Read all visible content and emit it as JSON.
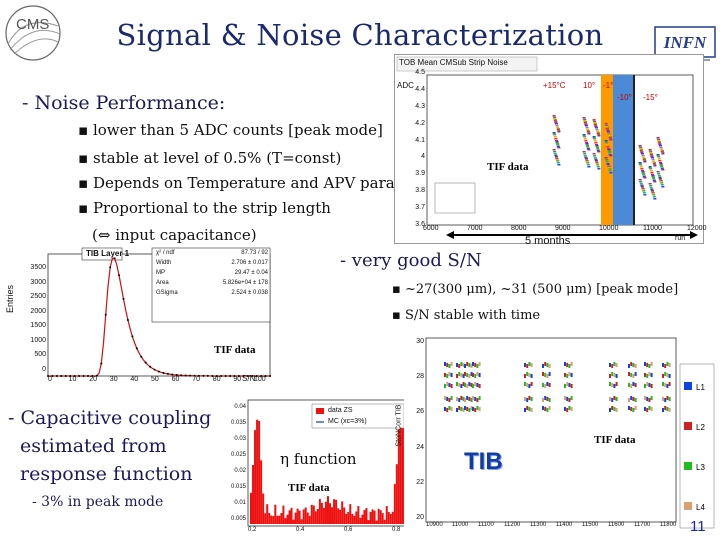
{
  "slide": {
    "title": "Signal & Noise Characterization",
    "page_number": "11",
    "logos": {
      "left": "CMS",
      "right": "INFN"
    }
  },
  "noise": {
    "heading": "- Noise Performance:",
    "bullets": [
      "lower than 5 ADC counts [peak mode]",
      "stable at level of 0.5% (T=const)",
      "Depends on Temperature and APV params",
      "Proportional to the strip length"
    ],
    "sub": "(⇔ input capacitance)"
  },
  "sn": {
    "heading": "- very good S/N",
    "bullets": [
      "~27(300 μm), ~31 (500 μm) [peak mode]",
      "S/N stable with time"
    ]
  },
  "capacitive": {
    "heading_lines": [
      "- Capacitive coupling",
      "estimated from",
      "response function"
    ],
    "sub": "- 3% in peak mode"
  },
  "plot_noise": {
    "title": "TOB Mean CMSub Strip Noise",
    "ylabel": "ADC",
    "temp_labels": [
      "+15°C",
      "10°",
      "-1°",
      "-10°",
      "-15°"
    ],
    "yticks": [
      "4.5",
      "4.4",
      "4.3",
      "4.2",
      "4.1",
      "4",
      "3.9",
      "3.8",
      "3.7",
      "3.6"
    ],
    "xticks": [
      "6000",
      "7000",
      "8000",
      "9000",
      "10000",
      "11000",
      "12000"
    ],
    "xunit": "run",
    "tif_label": "TIF data",
    "duration_label": "5 months",
    "band_colors": [
      "#ff9900",
      "#4a8ad6",
      "#ffffff"
    ]
  },
  "plot_sn": {
    "title": "TIB Layer 1",
    "ylabel": "Entries",
    "xlabel": "S/N",
    "yticks": [
      "3500",
      "3000",
      "2500",
      "2000",
      "1500",
      "1000",
      "500",
      "0"
    ],
    "xticks": [
      "0",
      "10",
      "20",
      "30",
      "40",
      "50",
      "60",
      "70",
      "80",
      "90",
      "100"
    ],
    "stats": [
      {
        "k": "χ² / ndf",
        "v": "87.73 / 92"
      },
      {
        "k": "Width",
        "v": "2.706 ± 0.017"
      },
      {
        "k": "MP",
        "v": "29.47 ± 0.04"
      },
      {
        "k": "Area",
        "v": "5.826e+04 ± 178"
      },
      {
        "k": "GSigma",
        "v": "2.524 ± 0.038"
      }
    ],
    "tif_label": "TIF data"
  },
  "plot_eta": {
    "legend": [
      "data ZS",
      "MC (xc=3%)"
    ],
    "yticks": [
      "0.04",
      "0.035",
      "0.03",
      "0.025",
      "0.02",
      "0.015",
      "0.01",
      "0.005"
    ],
    "xticks": [
      "0.2",
      "0.4",
      "0.6",
      "0.8"
    ],
    "label": "η  function",
    "tif_label": "TIF data"
  },
  "plot_ston": {
    "ylabel": "StoNCorr TIB",
    "yticks": [
      "30",
      "28",
      "26",
      "24",
      "22",
      "20"
    ],
    "xticks": [
      "10900",
      "11000",
      "11100",
      "11200",
      "11300",
      "11400",
      "11500",
      "11600",
      "11700",
      "11800"
    ],
    "legend": [
      "L1",
      "L2",
      "L3",
      "L4"
    ],
    "legend_colors": [
      "#1144dd",
      "#cc2222",
      "#22bb22",
      "#d9a070"
    ],
    "big_label": "TIB",
    "tif_label": "TIF data"
  }
}
